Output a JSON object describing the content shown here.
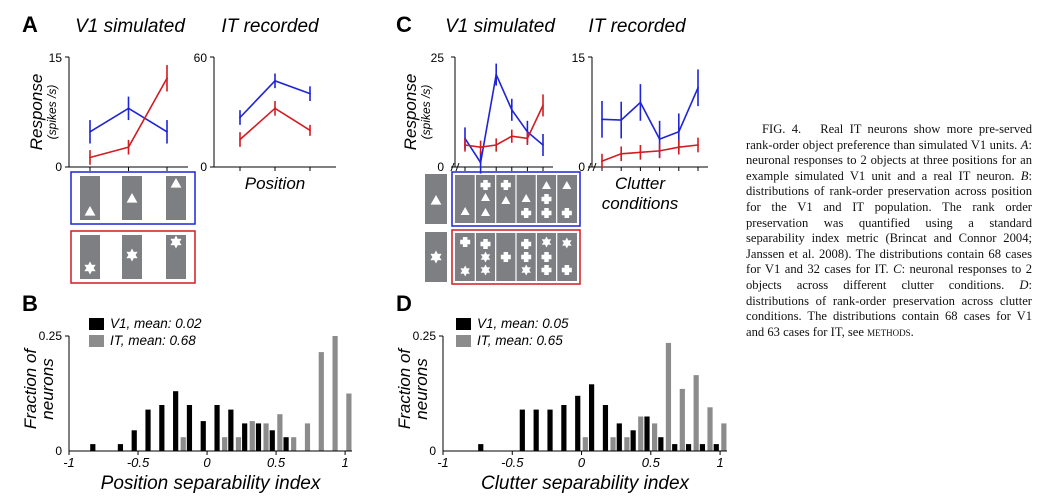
{
  "panels": {
    "A": {
      "letter": "A",
      "titles": [
        "V1 simulated",
        "IT recorded"
      ],
      "xlabel": "Position"
    },
    "C": {
      "letter": "C",
      "titles": [
        "V1 simulated",
        "IT recorded"
      ],
      "xlabel_line1": "Clutter",
      "xlabel_line2": "conditions"
    },
    "B": {
      "letter": "B"
    },
    "D": {
      "letter": "D"
    }
  },
  "response_axis": {
    "line1": "Response",
    "line2": "(spikes /s)"
  },
  "fraction_axis": {
    "line1": "Fraction of",
    "line2": "neurons"
  },
  "colors": {
    "blue": "#1f24d6",
    "red": "#d11c22",
    "black": "#000000",
    "gray": "#8c8c8c",
    "box": "#7d7f82"
  },
  "chart_data": [
    {
      "id": "A-V1",
      "type": "line",
      "title": "V1 simulated",
      "ylabel": "Response (spikes /s)",
      "ylim": [
        0,
        15
      ],
      "yticks": [
        "0",
        "15"
      ],
      "x": [
        1,
        2,
        3
      ],
      "series": [
        {
          "color": "blue",
          "values": [
            4.8,
            8.0,
            4.8
          ],
          "err": [
            1.6,
            1.6,
            1.6
          ]
        },
        {
          "color": "red",
          "values": [
            1.3,
            2.7,
            12.1
          ],
          "err": [
            1.0,
            1.0,
            1.8
          ]
        }
      ]
    },
    {
      "id": "A-IT",
      "type": "line",
      "title": "IT recorded",
      "xlabel": "Position",
      "ylim": [
        0,
        60
      ],
      "yticks": [
        "0",
        "60"
      ],
      "x": [
        1,
        2,
        3
      ],
      "series": [
        {
          "color": "blue",
          "values": [
            27,
            47,
            40
          ],
          "err": [
            4,
            4,
            4
          ]
        },
        {
          "color": "red",
          "values": [
            15,
            32,
            20
          ],
          "err": [
            4,
            4,
            3
          ]
        }
      ]
    },
    {
      "id": "C-V1",
      "type": "line",
      "title": "V1 simulated",
      "ylabel": "Response (spikes /s)",
      "ylim": [
        0,
        25
      ],
      "yticks": [
        "0",
        "25"
      ],
      "x": [
        1,
        2,
        3,
        4,
        5,
        6
      ],
      "series": [
        {
          "color": "blue",
          "values": [
            6.5,
            1.0,
            21.0,
            13.0,
            8.0,
            5.0
          ],
          "err": [
            2.5,
            2.5,
            2.5,
            2.5,
            2.5,
            2.5
          ]
        },
        {
          "color": "red",
          "values": [
            5.0,
            4.5,
            5.0,
            7.0,
            6.5,
            14.0
          ],
          "err": [
            1.5,
            1.5,
            1.5,
            1.5,
            1.5,
            2.5
          ]
        }
      ]
    },
    {
      "id": "C-IT",
      "type": "line",
      "title": "IT recorded",
      "xlabel": "Clutter conditions",
      "ylim": [
        0,
        15
      ],
      "yticks": [
        "0",
        "15"
      ],
      "x": [
        1,
        2,
        3,
        4,
        5,
        6
      ],
      "series": [
        {
          "color": "blue",
          "values": [
            6.5,
            6.4,
            8.8,
            3.8,
            4.8,
            10.8
          ],
          "err": [
            2.5,
            2.5,
            2.5,
            2.5,
            2.5,
            2.5
          ]
        },
        {
          "color": "red",
          "values": [
            0.8,
            1.8,
            2.0,
            2.2,
            2.7,
            3.0
          ],
          "err": [
            1.0,
            1.0,
            1.0,
            1.0,
            1.0,
            1.0
          ]
        }
      ]
    },
    {
      "id": "B",
      "type": "bar",
      "xlabel": "Position separability index",
      "ylabel": "Fraction of neurons",
      "xlim": [
        -1,
        1.05
      ],
      "ylim": [
        0,
        0.25
      ],
      "xticks": [
        "-1",
        "-0.5",
        "0",
        "0.5",
        "1"
      ],
      "yticks": [
        "0",
        "0.25"
      ],
      "series": [
        {
          "name": "V1, mean: 0.02",
          "color": "black",
          "x": [
            -0.8,
            -0.6,
            -0.5,
            -0.4,
            -0.3,
            -0.2,
            -0.1,
            0.0,
            0.1,
            0.2,
            0.3,
            0.4,
            0.5,
            0.6
          ],
          "values": [
            0.015,
            0.015,
            0.045,
            0.09,
            0.1,
            0.13,
            0.1,
            0.065,
            0.1,
            0.09,
            0.06,
            0.06,
            0.045,
            0.03
          ]
        },
        {
          "name": "IT, mean: 0.68",
          "color": "gray",
          "x": [
            -0.2,
            0.1,
            0.2,
            0.3,
            0.4,
            0.5,
            0.6,
            0.7,
            0.8,
            0.9,
            1.0
          ],
          "values": [
            0.03,
            0.03,
            0.03,
            0.065,
            0.06,
            0.08,
            0.03,
            0.06,
            0.215,
            0.25,
            0.125
          ]
        }
      ]
    },
    {
      "id": "D",
      "type": "bar",
      "xlabel": "Clutter separability index",
      "ylabel": "Fraction of neurons",
      "xlim": [
        -1,
        1.05
      ],
      "ylim": [
        0,
        0.25
      ],
      "xticks": [
        "-1",
        "-0.5",
        "0",
        "0.5",
        "1"
      ],
      "yticks": [
        "0",
        "0.25"
      ],
      "series": [
        {
          "name": "V1, mean: 0.05",
          "color": "black",
          "x": [
            -0.7,
            -0.4,
            -0.3,
            -0.2,
            -0.1,
            0.0,
            0.1,
            0.2,
            0.3,
            0.4,
            0.5,
            0.6,
            0.7,
            0.8,
            0.9,
            1.0
          ],
          "values": [
            0.015,
            0.09,
            0.09,
            0.09,
            0.1,
            0.12,
            0.145,
            0.1,
            0.06,
            0.045,
            0.075,
            0.03,
            0.015,
            0.015,
            0.015,
            0.015
          ]
        },
        {
          "name": "IT, mean: 0.65",
          "color": "gray",
          "x": [
            0.0,
            0.2,
            0.3,
            0.4,
            0.5,
            0.6,
            0.7,
            0.8,
            0.9,
            1.0
          ],
          "values": [
            0.03,
            0.03,
            0.03,
            0.075,
            0.06,
            0.235,
            0.135,
            0.165,
            0.095,
            0.06
          ]
        }
      ]
    }
  ],
  "caption": {
    "fig_label": "FIG. 4.",
    "text_1": "Real IT neurons show more pre-served rank-order object preference than simulated V1 units. ",
    "A": "A",
    "text_2": ": neuronal responses to 2 objects at three positions for an example simulated V1 unit and a real IT neuron. ",
    "B": "B",
    "text_3": ": distributions of rank-order preservation across position for the V1 and IT population. The rank order preservation was quantified using a standard separability index metric (Brincat and Connor 2004; Janssen et al. 2008). The distributions contain 68 cases for V1 and 32 cases for IT. ",
    "C": "C",
    "text_4": ": neuronal responses to 2 objects across different clutter conditions. ",
    "D": "D",
    "text_5": ": distributions of rank-order preservation across clutter conditions. The distributions contain 68 cases for V1 and 63 cases for IT, see ",
    "methods": "methods",
    "text_6": "."
  }
}
